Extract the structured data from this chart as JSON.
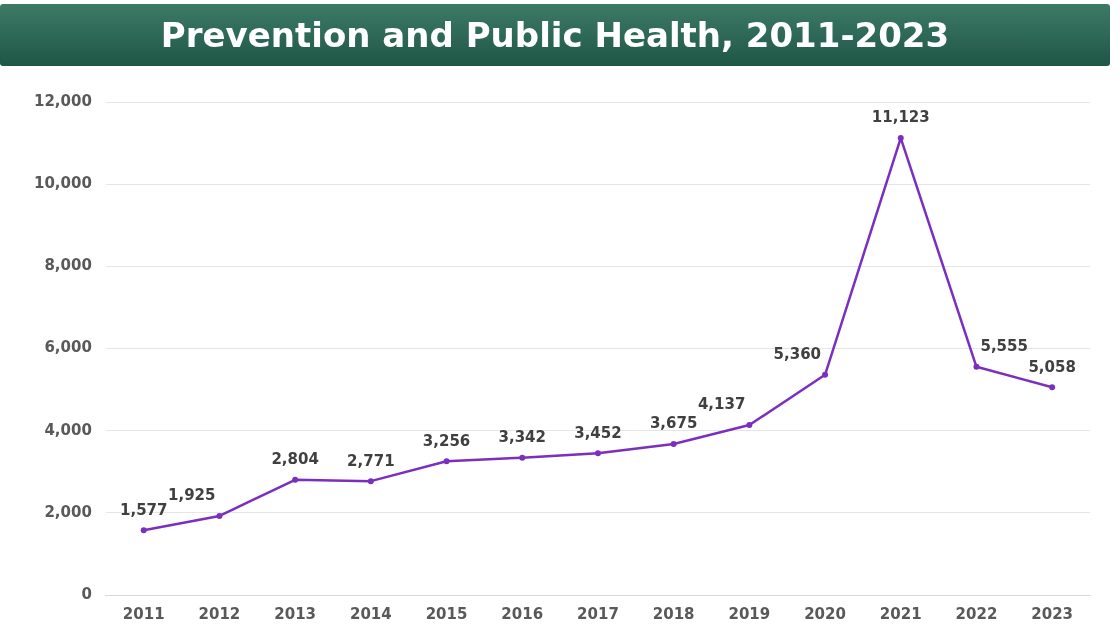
{
  "chart_data": {
    "type": "line",
    "title": "Prevention and Public Health, 2011-2023",
    "categories": [
      "2011",
      "2012",
      "2013",
      "2014",
      "2015",
      "2016",
      "2017",
      "2018",
      "2019",
      "2020",
      "2021",
      "2022",
      "2023"
    ],
    "series": [
      {
        "color": "#7b2fbe",
        "values": [
          1577,
          1925,
          2804,
          2771,
          3256,
          3342,
          3452,
          3675,
          4137,
          5360,
          11123,
          5555,
          5058
        ],
        "value_labels": [
          "1,577",
          "1,925",
          "2,804",
          "2,771",
          "3,256",
          "3,342",
          "3,452",
          "3,675",
          "4,137",
          "5,360",
          "11,123",
          "5,555",
          "5,058"
        ]
      }
    ],
    "ylim": [
      0,
      12000
    ],
    "yticks": [
      0,
      {
        "value": 2000,
        "label": "2,000"
      },
      {
        "value": 4000,
        "label": "4,000"
      },
      {
        "value": 6000,
        "label": "6,000"
      },
      {
        "value": 8000,
        "label": "8,000"
      },
      {
        "value": 10000,
        "label": "10,000"
      },
      {
        "value": 12000,
        "label": "12,000"
      }
    ],
    "grid": "y",
    "legend": false,
    "marker": "circle",
    "line_style": "solid"
  }
}
